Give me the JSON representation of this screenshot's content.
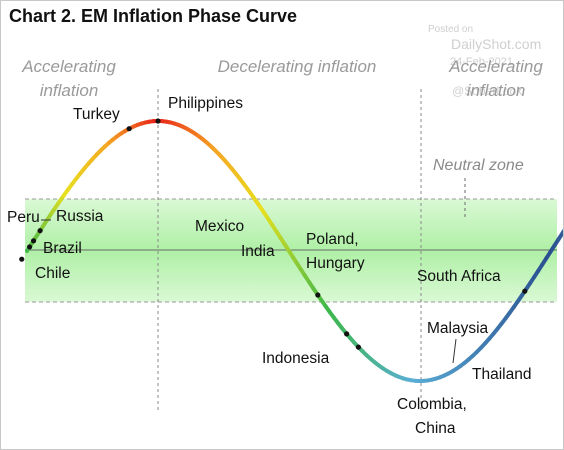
{
  "watermark": {
    "posted_on": "Posted on",
    "site": "DailyShot.com",
    "date": "24-Feb-2021",
    "handle": "@SoberLook"
  },
  "chart_data": {
    "type": "line",
    "title": "Chart 2. EM Inflation Phase Curve",
    "xlabel": "",
    "ylabel": "",
    "phases": [
      {
        "label_lines": [
          "Accelerating",
          "inflation"
        ]
      },
      {
        "label_lines": [
          "Decelerating inflation"
        ]
      },
      {
        "label_lines": [
          "Accelerating",
          "inflation"
        ]
      }
    ],
    "neutral_zone_label": "Neutral zone",
    "colors": {
      "curve_high": "#e8201a",
      "curve_mid": "#f5a623",
      "curve_yellow": "#e8e020",
      "curve_green": "#3cb84a",
      "curve_low": "#2a4f8f",
      "curve_blue_light": "#5aaed6",
      "neutral_zone": "#aef0a6",
      "dashed": "#9a9a9a",
      "axis": "#6a6a6a"
    },
    "countries": [
      {
        "name": "Peru",
        "phase": -0.04
      },
      {
        "name": "Russia",
        "phase": 0.1
      },
      {
        "name": "Brazil",
        "phase": 0.05
      },
      {
        "name": "Chile",
        "phase": 0.02
      },
      {
        "name": "Turkey",
        "phase": 0.78
      },
      {
        "name": "Philippines",
        "phase": 1.0
      },
      {
        "name": "Mexico",
        "phase": 2.22
      },
      {
        "name": "India",
        "phase": 2.44
      },
      {
        "name": "Poland,",
        "phase": 2.5
      },
      {
        "name": "Hungary",
        "phase": 2.53
      },
      {
        "name": "Indonesia",
        "phase": 3.8
      },
      {
        "name": "Colombia,",
        "phase": 4.45
      },
      {
        "name": "China",
        "phase": 4.45
      },
      {
        "name": "Malaysia",
        "phase": 4.7
      },
      {
        "name": "Thailand",
        "phase": 4.78
      },
      {
        "name": "South Africa",
        "phase": 5.55
      }
    ]
  }
}
